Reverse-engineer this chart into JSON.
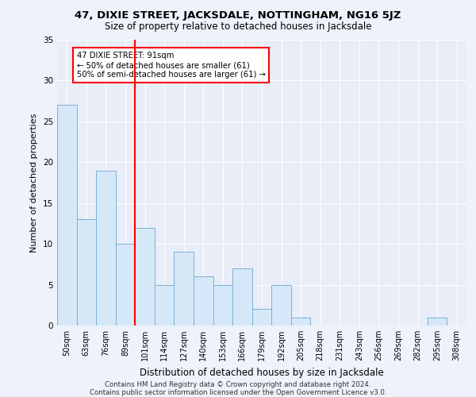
{
  "title": "47, DIXIE STREET, JACKSDALE, NOTTINGHAM, NG16 5JZ",
  "subtitle": "Size of property relative to detached houses in Jacksdale",
  "xlabel": "Distribution of detached houses by size in Jacksdale",
  "ylabel": "Number of detached properties",
  "bar_color": "#d6e8f7",
  "bar_edge_color": "#7ab0d4",
  "categories": [
    "50sqm",
    "63sqm",
    "76sqm",
    "89sqm",
    "101sqm",
    "114sqm",
    "127sqm",
    "140sqm",
    "153sqm",
    "166sqm",
    "179sqm",
    "192sqm",
    "205sqm",
    "218sqm",
    "231sqm",
    "243sqm",
    "256sqm",
    "269sqm",
    "282sqm",
    "295sqm",
    "308sqm"
  ],
  "values": [
    27,
    13,
    19,
    10,
    12,
    5,
    9,
    6,
    5,
    7,
    2,
    5,
    1,
    0,
    0,
    0,
    0,
    0,
    0,
    1,
    0
  ],
  "ylim": [
    0,
    35
  ],
  "yticks": [
    0,
    5,
    10,
    15,
    20,
    25,
    30,
    35
  ],
  "property_label": "47 DIXIE STREET: 91sqm",
  "annotation_line1": "← 50% of detached houses are smaller (61)",
  "annotation_line2": "50% of semi-detached houses are larger (61) →",
  "red_line_x": 3.5,
  "footnote1": "Contains HM Land Registry data © Crown copyright and database right 2024.",
  "footnote2": "Contains public sector information licensed under the Open Government Licence v3.0.",
  "background_color": "#eef2fb",
  "plot_bg_color": "#e8edf8"
}
